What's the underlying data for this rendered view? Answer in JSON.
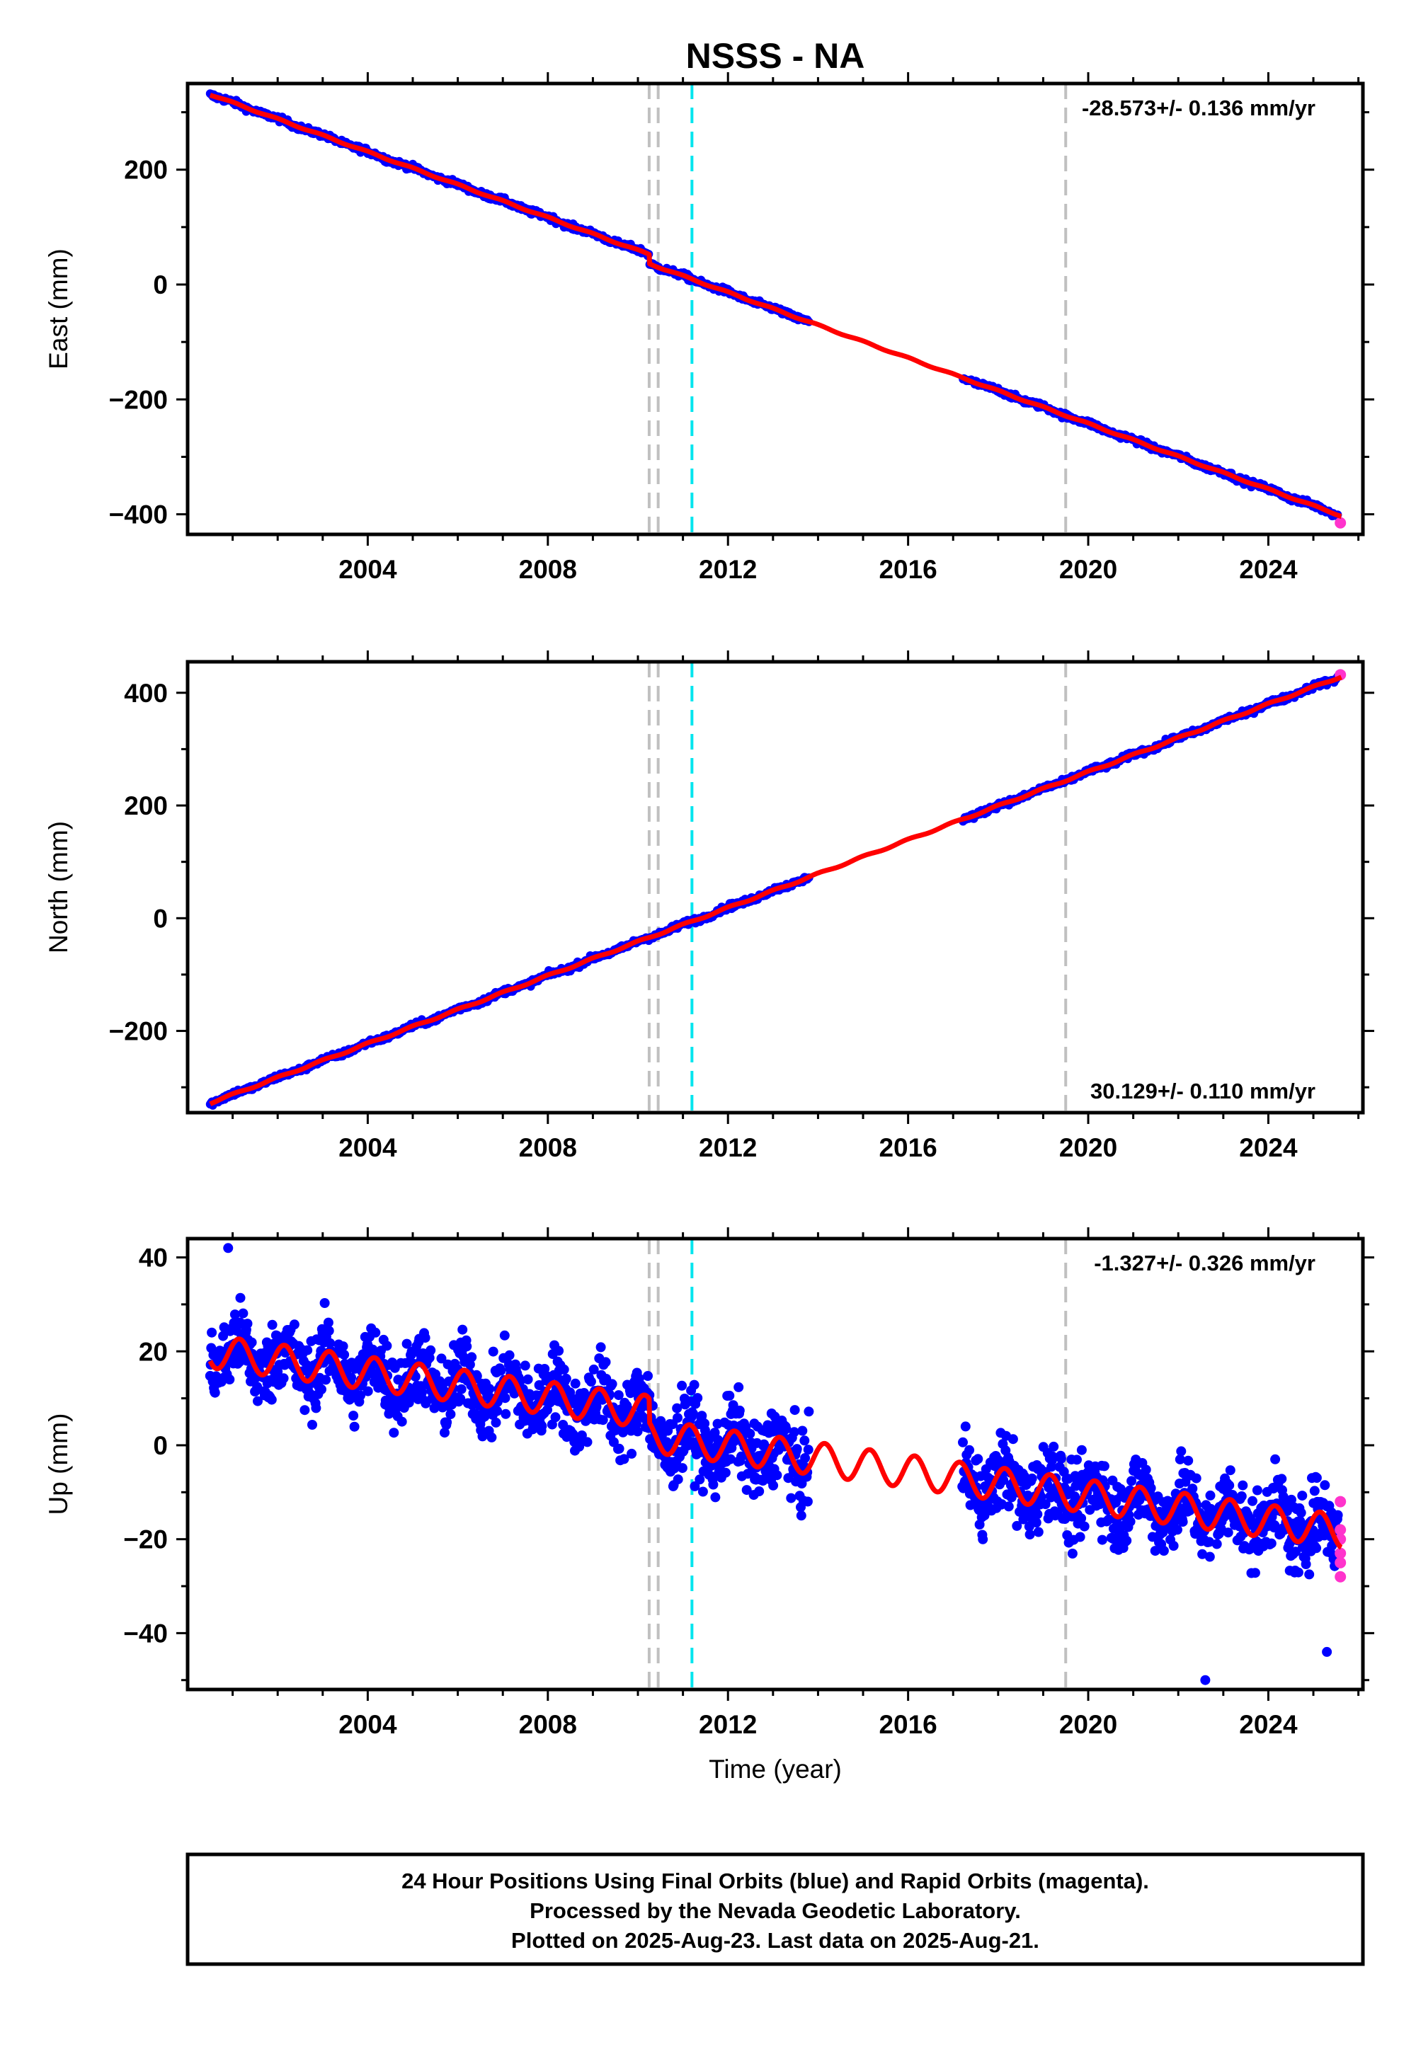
{
  "title": "NSSS - NA",
  "xlabel": "Time (year)",
  "colors": {
    "final_orbits": "#0000ff",
    "rapid_orbits": "#ff33cc",
    "model": "#ff0000",
    "antenna_change": "#c0c0c0",
    "earthquake": "#00e5ee",
    "frame": "#000000"
  },
  "footer": {
    "line1": "24 Hour Positions Using Final Orbits (blue) and Rapid Orbits (magenta).",
    "line2": "Processed by the Nevada Geodetic Laboratory.",
    "line3": "Plotted on 2025-Aug-23. Last data on 2025-Aug-21."
  },
  "chart_data": [
    {
      "type": "scatter",
      "component": "east",
      "ylabel": "East (mm)",
      "rate_label": "-28.573+/- 0.136 mm/yr",
      "rate_position": "top-right",
      "xlim": [
        2000.0,
        2026.1
      ],
      "ylim": [
        -435,
        350
      ],
      "xticks": [
        2004,
        2008,
        2012,
        2016,
        2020,
        2024
      ],
      "xtick_labels": [
        "2004",
        "2008",
        "2012",
        "2016",
        "2020",
        "2024"
      ],
      "yticks": [
        -400,
        -200,
        0,
        200
      ],
      "ytick_labels": [
        "−400",
        "−200",
        "0",
        "200"
      ],
      "grid": false,
      "antenna_change_years": [
        2010.25,
        2010.45,
        2019.5
      ],
      "earthquake_years": [
        2011.2
      ],
      "data_gap": [
        2013.8,
        2017.2
      ],
      "model_line": {
        "start_year": 2000.5,
        "start_value": 331,
        "rate": -28.573,
        "offsets": [
          {
            "year": 2010.25,
            "value": -16
          }
        ],
        "annual_amplitude": 1.2
      },
      "final_orbits": [
        {
          "x": 2000.5,
          "y": 331
        },
        {
          "x": 2004.0,
          "y": 233
        },
        {
          "x": 2008.0,
          "y": 119
        },
        {
          "x": 2010.2,
          "y": 62
        },
        {
          "x": 2010.3,
          "y": 44
        },
        {
          "x": 2012.0,
          "y": -8
        },
        {
          "x": 2013.8,
          "y": -70
        },
        {
          "x": 2017.2,
          "y": -180
        },
        {
          "x": 2020.0,
          "y": -253
        },
        {
          "x": 2024.0,
          "y": -374
        },
        {
          "x": 2025.4,
          "y": -412
        }
      ],
      "rapid_orbits": [
        {
          "x": 2025.6,
          "y": -415
        }
      ]
    },
    {
      "type": "scatter",
      "component": "north",
      "ylabel": "North (mm)",
      "rate_label": "30.129+/- 0.110 mm/yr",
      "rate_position": "bottom-right",
      "xlim": [
        2000.0,
        2026.1
      ],
      "ylim": [
        -345,
        455
      ],
      "xticks": [
        2004,
        2008,
        2012,
        2016,
        2020,
        2024
      ],
      "xtick_labels": [
        "2004",
        "2008",
        "2012",
        "2016",
        "2020",
        "2024"
      ],
      "yticks": [
        -200,
        0,
        200,
        400
      ],
      "ytick_labels": [
        "−200",
        "0",
        "200",
        "400"
      ],
      "grid": false,
      "antenna_change_years": [
        2010.25,
        2010.45,
        2019.5
      ],
      "earthquake_years": [
        2011.2
      ],
      "data_gap": [
        2013.8,
        2017.2
      ],
      "model_line": {
        "start_year": 2000.5,
        "start_value": -328,
        "rate": 30.129,
        "offsets": [],
        "annual_amplitude": 1.5
      },
      "final_orbits": [
        {
          "x": 2000.5,
          "y": -328
        },
        {
          "x": 2004.0,
          "y": -227
        },
        {
          "x": 2008.0,
          "y": -107
        },
        {
          "x": 2010.3,
          "y": -36
        },
        {
          "x": 2012.0,
          "y": 16
        },
        {
          "x": 2013.8,
          "y": 72
        },
        {
          "x": 2017.2,
          "y": 178
        },
        {
          "x": 2020.0,
          "y": 254
        },
        {
          "x": 2024.0,
          "y": 374
        },
        {
          "x": 2025.4,
          "y": 427
        }
      ],
      "rapid_orbits": [
        {
          "x": 2025.6,
          "y": 432
        }
      ]
    },
    {
      "type": "scatter",
      "component": "up",
      "ylabel": "Up (mm)",
      "rate_label": "-1.327+/- 0.326 mm/yr",
      "rate_position": "top-right",
      "xlim": [
        2000.0,
        2026.1
      ],
      "ylim": [
        -52,
        44
      ],
      "xticks": [
        2004,
        2008,
        2012,
        2016,
        2020,
        2024
      ],
      "xtick_labels": [
        "2004",
        "2008",
        "2012",
        "2016",
        "2020",
        "2024"
      ],
      "yticks": [
        -40,
        -20,
        0,
        20,
        40
      ],
      "ytick_labels": [
        "−40",
        "−20",
        "0",
        "20",
        "40"
      ],
      "grid": false,
      "antenna_change_years": [
        2010.25,
        2010.45,
        2019.5
      ],
      "earthquake_years": [
        2011.2
      ],
      "data_gap": [
        2013.8,
        2017.2
      ],
      "model_line": {
        "start_year": 2000.5,
        "start_value": 20,
        "rate": -1.327,
        "offsets": [
          {
            "year": 2010.25,
            "value": -5
          }
        ],
        "annual_amplitude": 3.5,
        "annual_phase_peak": 0.15
      },
      "scatter_sigma_mm": 4,
      "outliers": [
        {
          "x": 2000.9,
          "y": 42
        },
        {
          "x": 2022.6,
          "y": -50
        },
        {
          "x": 2025.3,
          "y": -44
        }
      ],
      "rapid_orbits": [
        {
          "x": 2025.6,
          "y": -12
        },
        {
          "x": 2025.6,
          "y": -18
        },
        {
          "x": 2025.6,
          "y": -20
        },
        {
          "x": 2025.6,
          "y": -23
        },
        {
          "x": 2025.6,
          "y": -25
        },
        {
          "x": 2025.6,
          "y": -28
        }
      ]
    }
  ]
}
